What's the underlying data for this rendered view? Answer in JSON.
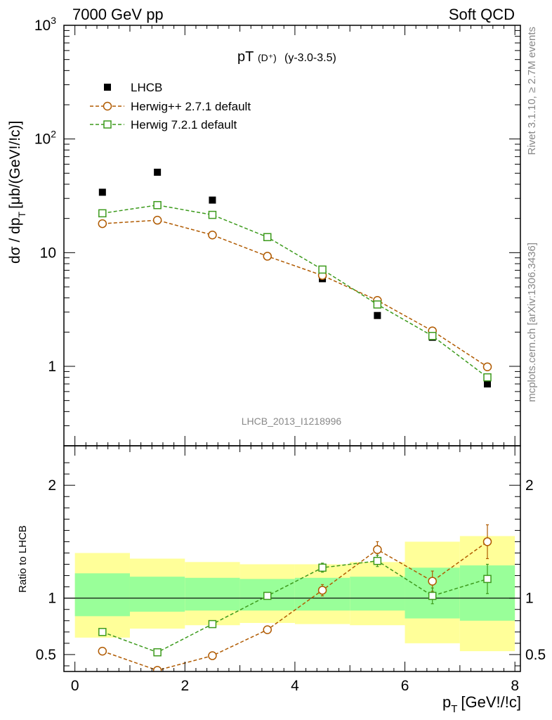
{
  "header": {
    "left": "7000 GeV pp",
    "right": "Soft QCD"
  },
  "side_labels": {
    "rivet": "Rivet 3.1.10, ≥ 2.7M events",
    "mcplots": "mcplots.cern.ch [arXiv:1306.3436]"
  },
  "colors": {
    "data": "#000000",
    "herwigpp": "#b05a00",
    "herwig7": "#3c9a1c",
    "band_outer": "#ffff99",
    "band_inner": "#99ff99"
  },
  "chart_data": [
    {
      "type": "scatter",
      "panel": "main",
      "title_main": "pT",
      "title_sub": "(D⁺)",
      "title_tail": "(y-3.0-3.5)",
      "ylabel": "dσ / dp",
      "ylabel_sub": "T",
      "ylabel_units": "[μb/(GeV!/!c)]",
      "yscale": "log",
      "xlim": [
        -0.2,
        8.1
      ],
      "ylim": [
        0.2,
        1000
      ],
      "yticks": [
        {
          "v": 1,
          "label": "1",
          "sup": ""
        },
        {
          "v": 10,
          "label": "10",
          "sup": ""
        },
        {
          "v": 100,
          "label": "10",
          "sup": "2"
        },
        {
          "v": 1000,
          "label": "10",
          "sup": "3"
        }
      ],
      "watermark": "LHCB_2013_I1218996",
      "legend_position": "top-left",
      "series": [
        {
          "name": "LHCB",
          "marker": "filled-square",
          "x": [
            0.5,
            1.5,
            2.5,
            3.5,
            4.5,
            5.5,
            6.5,
            7.5
          ],
          "y": [
            34,
            51,
            29,
            13.8,
            5.9,
            2.8,
            1.8,
            0.7
          ]
        },
        {
          "name": "Herwig++ 2.7.1 default",
          "marker": "open-circle",
          "x": [
            0.5,
            1.5,
            2.5,
            3.5,
            4.5,
            5.5,
            6.5,
            7.5
          ],
          "y": [
            18,
            19.3,
            14.3,
            9.3,
            6.3,
            3.8,
            2.05,
            0.99
          ]
        },
        {
          "name": "Herwig 7.2.1 default",
          "marker": "open-square",
          "x": [
            0.5,
            1.5,
            2.5,
            3.5,
            4.5,
            5.5,
            6.5,
            7.5
          ],
          "y": [
            22.2,
            26.2,
            21.5,
            13.7,
            7.1,
            3.5,
            1.85,
            0.8
          ]
        }
      ]
    },
    {
      "type": "scatter",
      "panel": "ratio",
      "ylabel": "Ratio to LHCB",
      "xlabel": "p",
      "xlabel_sub": "T",
      "xlabel_units": "[GeV!/!c]",
      "xlim": [
        -0.2,
        8.1
      ],
      "ylim": [
        0.35,
        2.35
      ],
      "xticks": [
        0,
        2,
        4,
        6,
        8
      ],
      "yticks": [
        {
          "v": 0.5,
          "label": "0.5"
        },
        {
          "v": 1,
          "label": "1"
        },
        {
          "v": 2,
          "label": "2"
        }
      ],
      "bands": {
        "x_edges": [
          0,
          1,
          2,
          3,
          4,
          5,
          6,
          7,
          8
        ],
        "outer_lo": [
          0.65,
          0.73,
          0.76,
          0.78,
          0.77,
          0.76,
          0.6,
          0.53
        ],
        "outer_hi": [
          1.4,
          1.35,
          1.32,
          1.3,
          1.3,
          1.32,
          1.5,
          1.55
        ],
        "inner_lo": [
          0.84,
          0.88,
          0.89,
          0.89,
          0.89,
          0.89,
          0.82,
          0.8
        ],
        "inner_hi": [
          1.22,
          1.19,
          1.18,
          1.17,
          1.18,
          1.19,
          1.27,
          1.29
        ]
      },
      "series": [
        {
          "name": "Herwig++ 2.7.1 default",
          "marker": "open-circle",
          "x": [
            0.5,
            1.5,
            2.5,
            3.5,
            4.5,
            5.5,
            6.5,
            7.5
          ],
          "y": [
            0.53,
            0.36,
            0.49,
            0.72,
            1.07,
            1.43,
            1.15,
            1.5
          ],
          "err": [
            0.02,
            0.02,
            0.02,
            0.03,
            0.05,
            0.07,
            0.09,
            0.15
          ]
        },
        {
          "name": "Herwig 7.2.1 default",
          "marker": "open-square",
          "x": [
            0.5,
            1.5,
            2.5,
            3.5,
            4.5,
            5.5,
            6.5,
            7.5
          ],
          "y": [
            0.7,
            0.52,
            0.77,
            1.02,
            1.27,
            1.33,
            1.02,
            1.17
          ],
          "err": [
            0.02,
            0.02,
            0.02,
            0.03,
            0.04,
            0.05,
            0.07,
            0.13
          ]
        }
      ]
    }
  ]
}
